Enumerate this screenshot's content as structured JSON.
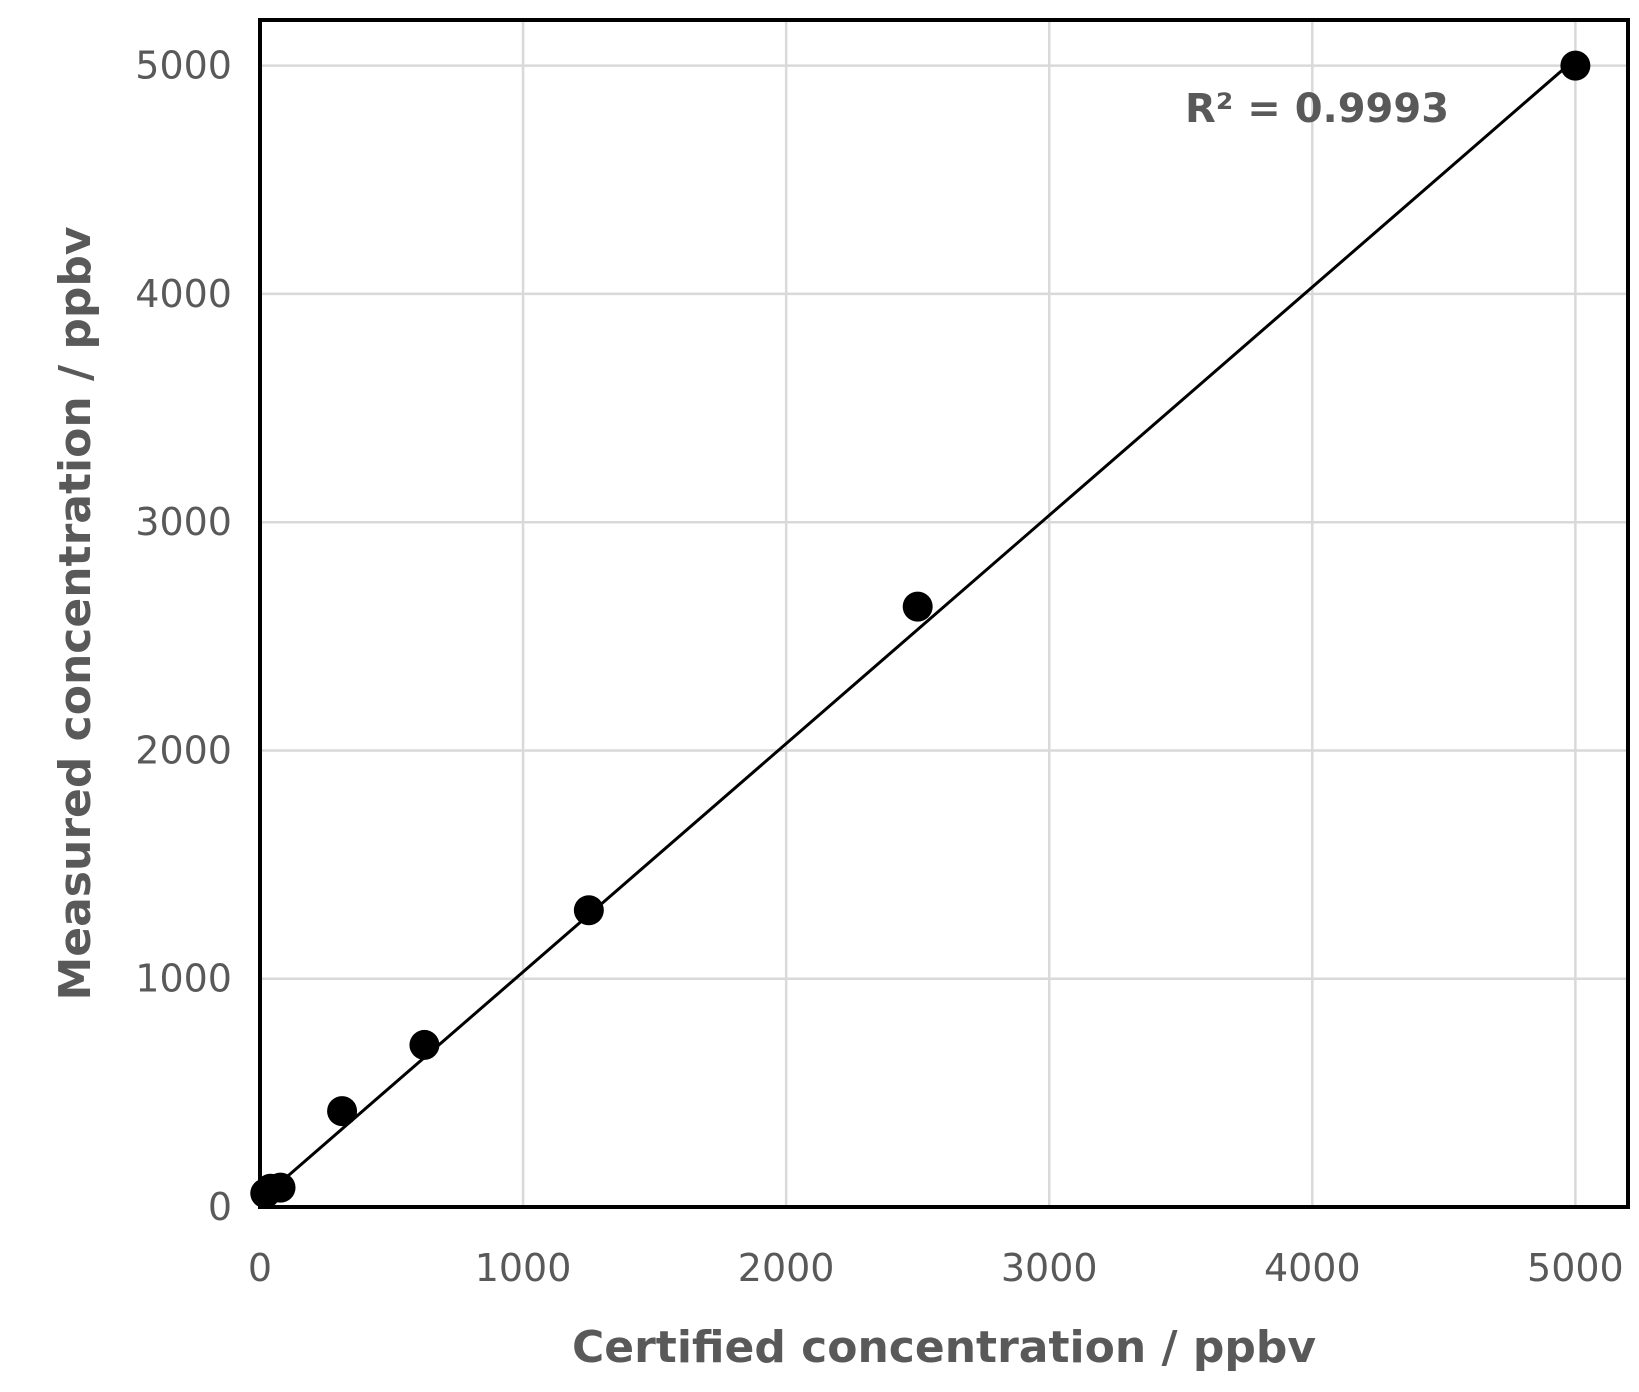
{
  "chart_data": {
    "type": "scatter",
    "xlabel": "Certified concentration / ppbv",
    "ylabel": "Measured concentration / ppbv",
    "xlim": [
      0,
      5200
    ],
    "ylim": [
      0,
      5200
    ],
    "xticks": [
      0,
      1000,
      2000,
      3000,
      4000,
      5000
    ],
    "yticks": [
      0,
      1000,
      2000,
      3000,
      4000,
      5000
    ],
    "grid": true,
    "legend": "none",
    "series": [
      {
        "x": [
          20,
          40,
          78,
          312,
          625,
          1250,
          2500,
          5000
        ],
        "y": [
          60,
          80,
          85,
          420,
          710,
          1300,
          2630,
          5000
        ],
        "color": "#000000",
        "marker": "circle"
      }
    ],
    "trendline": {
      "type": "linear",
      "slope": 1.0,
      "intercept": 30,
      "color": "#000000"
    },
    "annotation": {
      "text": "R² = 0.9993"
    }
  }
}
